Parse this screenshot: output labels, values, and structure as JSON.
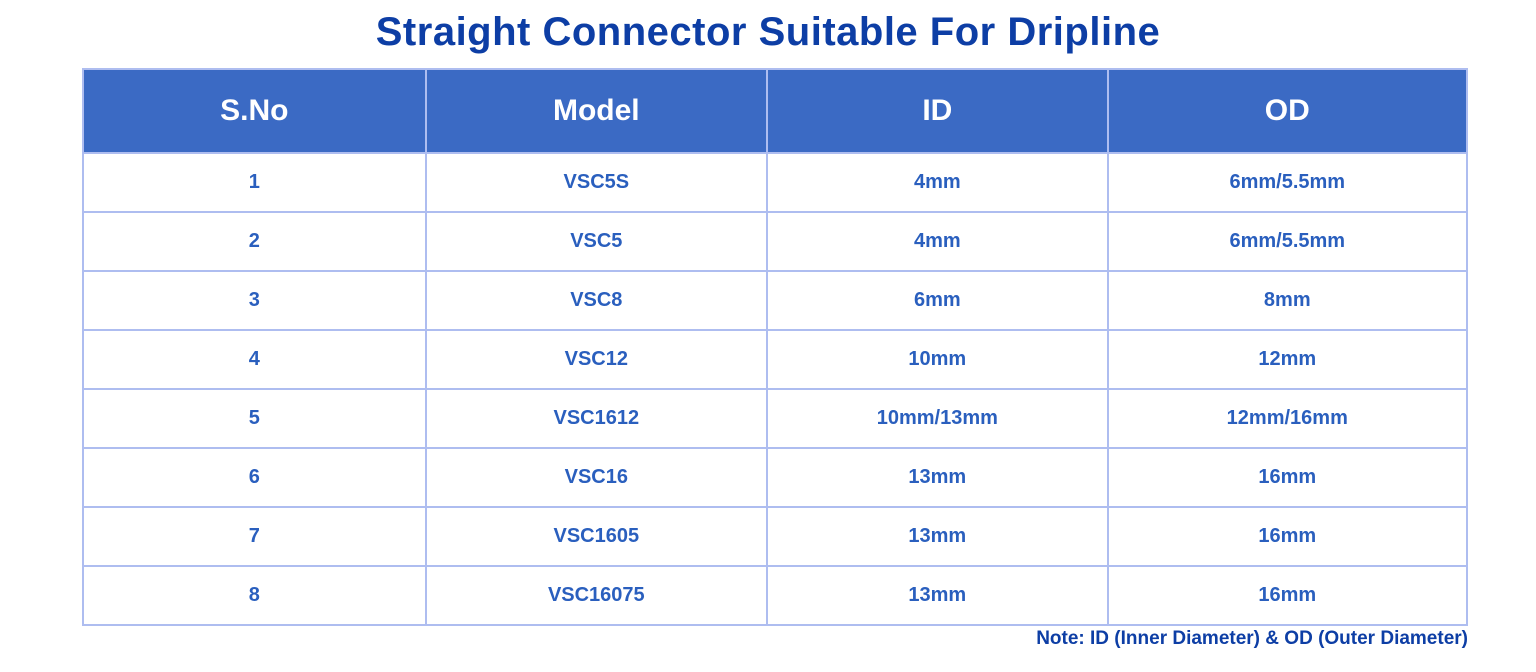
{
  "page": {
    "title": "Straight Connector Suitable For Dripline",
    "note": "Note: ID (Inner Diameter) & OD (Outer Diameter)"
  },
  "colors": {
    "background": "#ffffff",
    "header_bg": "#3b6ac4",
    "header_text": "#ffffff",
    "title_text": "#0d3ea5",
    "cell_text": "#2a5fbe",
    "border": "#aebdf0",
    "note_text": "#0d3ea5"
  },
  "table": {
    "columns": [
      "S.No",
      "Model",
      "ID",
      "OD"
    ],
    "rows": [
      [
        "1",
        "VSC5S",
        "4mm",
        "6mm/5.5mm"
      ],
      [
        "2",
        "VSC5",
        "4mm",
        "6mm/5.5mm"
      ],
      [
        "3",
        "VSC8",
        "6mm",
        "8mm"
      ],
      [
        "4",
        "VSC12",
        "10mm",
        "12mm"
      ],
      [
        "5",
        "VSC1612",
        "10mm/13mm",
        "12mm/16mm"
      ],
      [
        "6",
        "VSC16",
        "13mm",
        "16mm"
      ],
      [
        "7",
        "VSC1605",
        "13mm",
        "16mm"
      ],
      [
        "8",
        "VSC16075",
        "13mm",
        "16mm"
      ]
    ]
  }
}
